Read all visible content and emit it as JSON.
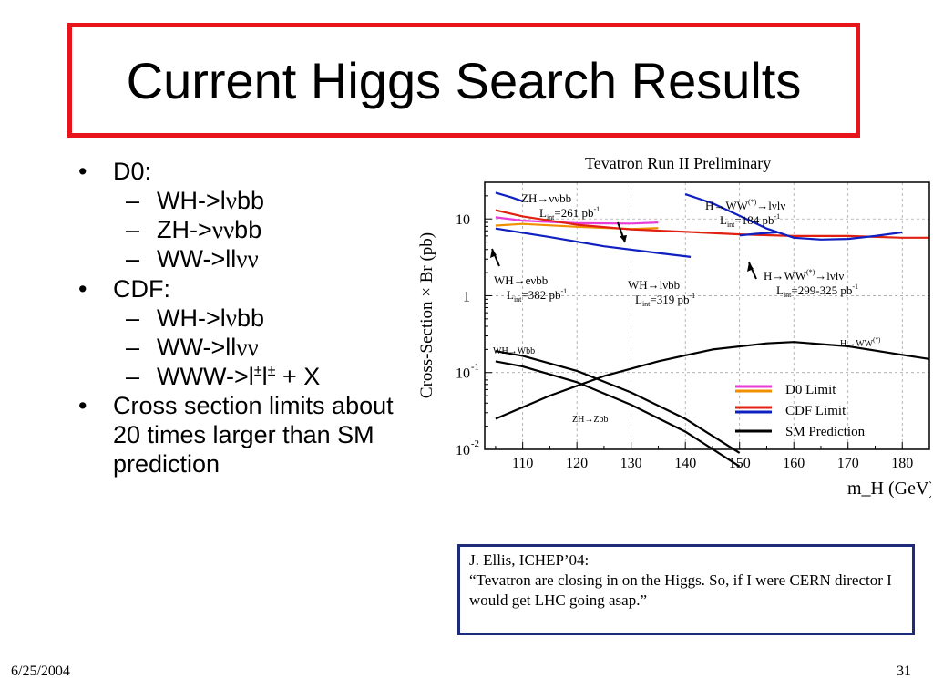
{
  "slide": {
    "title": "Current Higgs Search Results",
    "bullets": [
      {
        "text": "D0:",
        "sub": [
          {
            "pre": "WH->l",
            "nu": "ν",
            "post": "bb"
          },
          {
            "pre": "ZH->",
            "nu": "νν",
            "post": "bb"
          },
          {
            "pre": "WW->ll",
            "nu": "νν",
            "post": ""
          }
        ]
      },
      {
        "text": "CDF:",
        "sub": [
          {
            "pre": "WH->l",
            "nu": "ν",
            "post": "bb"
          },
          {
            "pre": "WW->ll",
            "nu": "νν",
            "post": ""
          },
          {
            "pre": "WWW->l",
            "sup1": "±",
            "mid": "l",
            "sup2": "±",
            "post": " + X"
          }
        ]
      },
      {
        "text": "Cross section limits about 20 times larger than SM prediction",
        "sub": []
      }
    ],
    "quote": {
      "line1": "J. Ellis, ICHEP’04:",
      "line2": "“Tevatron are closing in on the Higgs. So, if I were CERN director I would get LHC going asap.”"
    },
    "footer": {
      "date": "6/25/2004",
      "page": "31"
    }
  },
  "chart_data": {
    "type": "line",
    "title": "Tevatron Run II Preliminary",
    "xlabel": "m_H (GeV)",
    "ylabel": "Cross-Section × Br (pb)",
    "xlim": [
      103,
      185
    ],
    "ylim": [
      0.01,
      30
    ],
    "log_y": true,
    "x_ticks": [
      110,
      120,
      130,
      140,
      150,
      160,
      170,
      180
    ],
    "y_ticks": [
      {
        "value": 10,
        "label": "10"
      },
      {
        "value": 1,
        "label": "1"
      },
      {
        "value": 0.1,
        "label": "10",
        "exp": "-1"
      },
      {
        "value": 0.01,
        "label": "10",
        "exp": "-2"
      }
    ],
    "grid": true,
    "legend": {
      "placement": "bottom-right",
      "entries": [
        {
          "label": "D0 Limit",
          "colors": [
            "#e83cd8",
            "#f09000"
          ]
        },
        {
          "label": "CDF Limit",
          "colors": [
            "#e02010",
            "#1020c0"
          ]
        },
        {
          "label": "SM Prediction",
          "colors": [
            "#000000"
          ]
        }
      ]
    },
    "series": [
      {
        "legend": "D0 Limit",
        "color": "#e83cd8",
        "points": [
          [
            105,
            10.5
          ],
          [
            110,
            9.5
          ],
          [
            120,
            8.8
          ],
          [
            130,
            8.7
          ],
          [
            135,
            9
          ]
        ]
      },
      {
        "legend": "D0 Limit",
        "color": "#f09000",
        "points": [
          [
            105,
            8.2
          ],
          [
            110,
            8.6
          ],
          [
            120,
            7.9
          ],
          [
            130,
            7.4
          ],
          [
            135,
            7.6
          ]
        ]
      },
      {
        "legend": "CDF Limit",
        "color": "#e02010",
        "points": [
          [
            105,
            13
          ],
          [
            110,
            10.8
          ],
          [
            120,
            8.4
          ],
          [
            130,
            7.3
          ],
          [
            140,
            6.8
          ],
          [
            150,
            6.3
          ],
          [
            160,
            6
          ],
          [
            170,
            6
          ],
          [
            180,
            5.7
          ],
          [
            185,
            5.7
          ]
        ]
      },
      {
        "legend": "CDF Limit",
        "color": "#1020c0",
        "points": [
          [
            105,
            7.5
          ],
          [
            115,
            5.8
          ],
          [
            125,
            4.4
          ],
          [
            135,
            3.6
          ],
          [
            141,
            3.2
          ]
        ]
      },
      {
        "legend": "CDF Limit",
        "color": "#1020c0",
        "points": [
          [
            140,
            21
          ],
          [
            145,
            16
          ],
          [
            150,
            11
          ],
          [
            155,
            7.5
          ],
          [
            160,
            5.7
          ],
          [
            165,
            5.4
          ],
          [
            170,
            5.5
          ],
          [
            175,
            6
          ],
          [
            180,
            6.7
          ]
        ]
      },
      {
        "legend": "CDF Limit",
        "color": "#1020c0",
        "points": [
          [
            105,
            22
          ],
          [
            108,
            19
          ],
          [
            110,
            17
          ]
        ]
      },
      {
        "legend": "CDF Limit",
        "color": "#1020c0",
        "points": [
          [
            150,
            6.1
          ],
          [
            153,
            6.4
          ],
          [
            157,
            6.7
          ]
        ]
      },
      {
        "legend": "SM Prediction",
        "color": "#000000",
        "points": [
          [
            105,
            0.19
          ],
          [
            110,
            0.165
          ],
          [
            120,
            0.105
          ],
          [
            130,
            0.055
          ],
          [
            140,
            0.025
          ],
          [
            150,
            0.009
          ]
        ]
      },
      {
        "legend": "SM Prediction",
        "color": "#000000",
        "points": [
          [
            105,
            0.14
          ],
          [
            110,
            0.12
          ],
          [
            120,
            0.075
          ],
          [
            130,
            0.038
          ],
          [
            140,
            0.017
          ],
          [
            150,
            0.006
          ]
        ]
      },
      {
        "legend": "SM Prediction",
        "color": "#000000",
        "points": [
          [
            105,
            0.025
          ],
          [
            115,
            0.05
          ],
          [
            125,
            0.09
          ],
          [
            135,
            0.14
          ],
          [
            145,
            0.2
          ],
          [
            155,
            0.24
          ],
          [
            160,
            0.25
          ],
          [
            170,
            0.22
          ],
          [
            180,
            0.17
          ],
          [
            185,
            0.15
          ]
        ]
      }
    ],
    "annotations": [
      {
        "id": "zh",
        "line1": "ZH→ννbb",
        "line2": "L",
        "sub": "int",
        "rest": "=261 pb",
        "sup": "-1"
      },
      {
        "id": "hww1",
        "line1": "H→WW",
        "sup1": "(*)",
        "line1b": "→lνlν",
        "line2": "L",
        "sub": "int",
        "rest": "=184 pb",
        "sup": "-1"
      },
      {
        "id": "whe",
        "line1": "WH→eνbb",
        "line2": "L",
        "sub": "int",
        "rest": "=382 pb",
        "sup": "-1"
      },
      {
        "id": "whl",
        "line1": "WH→lνbb",
        "line2": "L",
        "sub": "int",
        "rest": "=319 pb",
        "sup": "-1"
      },
      {
        "id": "hww2",
        "line1": "H→WW",
        "sup1": "(*)",
        "line1b": "→lνlν",
        "line2": "L",
        "sub": "int",
        "rest": "=299-325 pb",
        "sup": "-1"
      },
      {
        "id": "whwbb",
        "line1": "WH→Wbb"
      },
      {
        "id": "zhzbb",
        "line1": "ZH→Zbb"
      },
      {
        "id": "hwwsm",
        "line1": "H→WW",
        "sup1": "(*)"
      }
    ]
  }
}
